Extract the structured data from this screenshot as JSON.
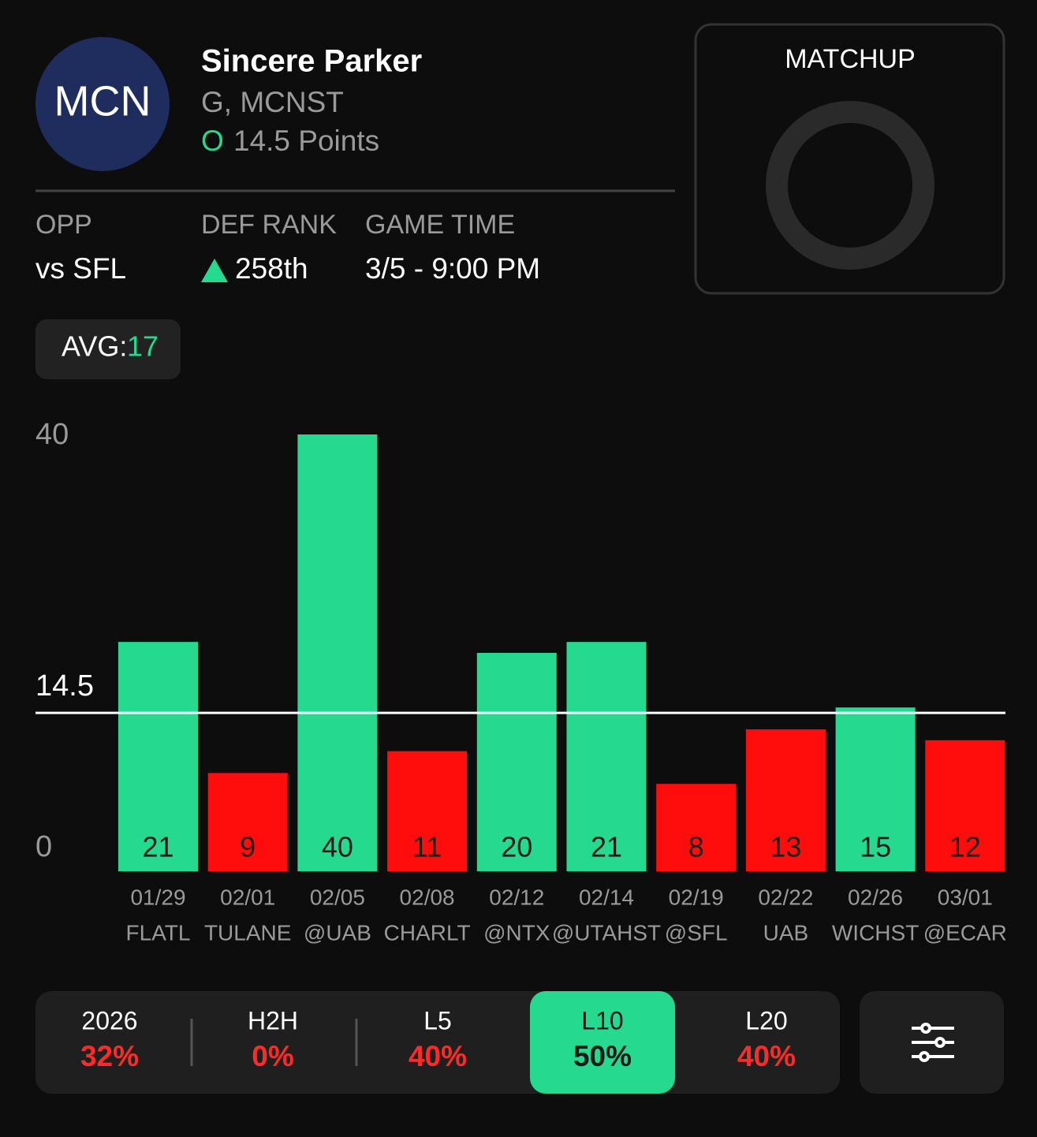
{
  "player": {
    "logo": "MCN",
    "name": "Sincere Parker",
    "position": "G, MCNST",
    "pick": "O",
    "line": "14.5 Points"
  },
  "info": [
    {
      "label": "OPP",
      "value": "vs SFL"
    },
    {
      "label": "DEF RANK",
      "value": "258th"
    },
    {
      "label": "GAME TIME",
      "value": "3/5 - 9:00 PM"
    }
  ],
  "matchup": {
    "title": "MATCHUP"
  },
  "avg": {
    "label": "AVG:",
    "value": "17"
  },
  "chart_data": {
    "type": "bar",
    "categories": [
      "01/29",
      "02/01",
      "02/05",
      "02/08",
      "02/12",
      "02/14",
      "02/19",
      "02/22",
      "02/26",
      "03/01"
    ],
    "opponents": [
      "FLATL",
      "TULANE",
      "@UAB",
      "CHARLT",
      "@NTX",
      "@UTAHST",
      "@SFL",
      "UAB",
      "WICHST",
      "@ECAR"
    ],
    "values": [
      21,
      9,
      40,
      11,
      20,
      21,
      8,
      13,
      15,
      12
    ],
    "ylim": [
      0,
      40
    ],
    "yticks": [
      0,
      40
    ],
    "threshold": 14.5,
    "above_color": "#25d98f",
    "below_color": "#ff0d0d"
  },
  "filters": [
    {
      "label": "2026",
      "value": "32%"
    },
    {
      "label": "H2H",
      "value": "0%"
    },
    {
      "label": "L5",
      "value": "40%"
    },
    {
      "label": "L10",
      "value": "50%",
      "selected": true
    },
    {
      "label": "L20",
      "value": "40%"
    }
  ]
}
